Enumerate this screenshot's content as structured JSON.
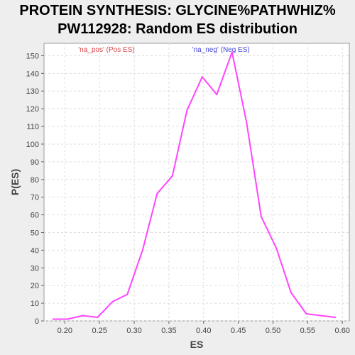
{
  "title_line_1": "PROTEIN SYNTHESIS: GLYCINE%PATHWHIZ%",
  "title_line_2": "PW112928: Random ES distribution",
  "chart_data": {
    "type": "line",
    "xlabel": "ES",
    "ylabel": "P(ES)",
    "xlim": [
      0.17,
      0.61
    ],
    "ylim": [
      0,
      157
    ],
    "xticks": [
      0.2,
      0.25,
      0.3,
      0.35,
      0.4,
      0.45,
      0.5,
      0.55,
      0.6
    ],
    "xtick_labels": [
      "0.20",
      "0.25",
      "0.30",
      "0.35",
      "0.40",
      "0.45",
      "0.50",
      "0.55",
      "0.60"
    ],
    "yticks": [
      0,
      10,
      20,
      30,
      40,
      50,
      60,
      70,
      80,
      90,
      100,
      110,
      120,
      130,
      140,
      150
    ],
    "ytick_labels": [
      "0",
      "10",
      "20",
      "30",
      "40",
      "50",
      "60",
      "70",
      "80",
      "90",
      "100",
      "110",
      "120",
      "130",
      "140",
      "150"
    ],
    "grid": true,
    "line_color": "#ff44ff",
    "x": [
      0.183,
      0.204,
      0.226,
      0.247,
      0.269,
      0.29,
      0.312,
      0.333,
      0.355,
      0.376,
      0.398,
      0.419,
      0.441,
      0.462,
      0.483,
      0.505,
      0.526,
      0.548,
      0.569,
      0.59
    ],
    "y": [
      1,
      1,
      3,
      2,
      11,
      15,
      40,
      72,
      82,
      119,
      138,
      128,
      152,
      112,
      59,
      41,
      16,
      4,
      3,
      2
    ],
    "annotations": [
      {
        "text": "'na_pos' (Pos ES)",
        "color": "#dd4444",
        "x": 0.26
      },
      {
        "text": "'na_neg' (Neg ES)",
        "color": "#4444dd",
        "x": 0.425
      }
    ]
  }
}
